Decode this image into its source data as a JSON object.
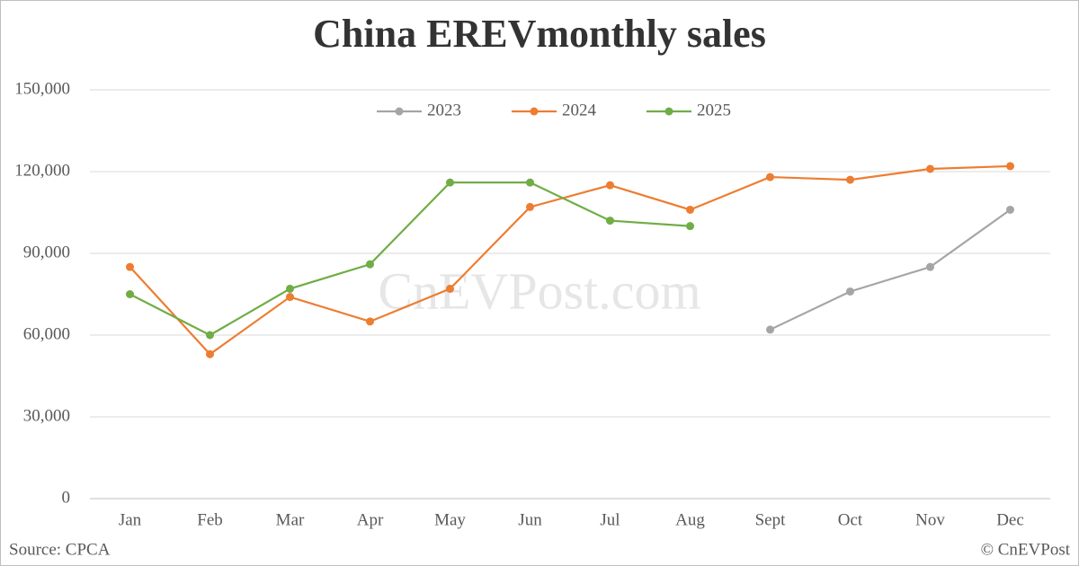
{
  "chart_data": {
    "type": "line",
    "title": "China EREVmonthly sales",
    "watermark": "CnEVPost.com",
    "source": "Source: CPCA",
    "credit": "© CnEVPost",
    "categories": [
      "Jan",
      "Feb",
      "Mar",
      "Apr",
      "May",
      "Jun",
      "Jul",
      "Aug",
      "Sept",
      "Oct",
      "Nov",
      "Dec"
    ],
    "series": [
      {
        "name": "2023",
        "color": "#a5a5a5",
        "values": [
          null,
          null,
          null,
          null,
          null,
          null,
          null,
          null,
          62000,
          76000,
          85000,
          106000
        ]
      },
      {
        "name": "2024",
        "color": "#ed7d31",
        "values": [
          85000,
          53000,
          74000,
          65000,
          77000,
          107000,
          115000,
          106000,
          118000,
          117000,
          121000,
          122000
        ]
      },
      {
        "name": "2025",
        "color": "#70ad47",
        "values": [
          75000,
          60000,
          77000,
          86000,
          116000,
          116000,
          102000,
          100000,
          null,
          null,
          null,
          null
        ]
      }
    ],
    "ylim": [
      0,
      150000
    ],
    "yticks": [
      0,
      {
        "value": 30000,
        "label": "30,000"
      },
      {
        "value": 60000,
        "label": "60,000"
      },
      {
        "value": 90000,
        "label": "90,000"
      },
      {
        "value": 120000,
        "label": "120,000"
      },
      {
        "value": 150000,
        "label": "150,000"
      }
    ],
    "grid": true,
    "legend": "top"
  }
}
